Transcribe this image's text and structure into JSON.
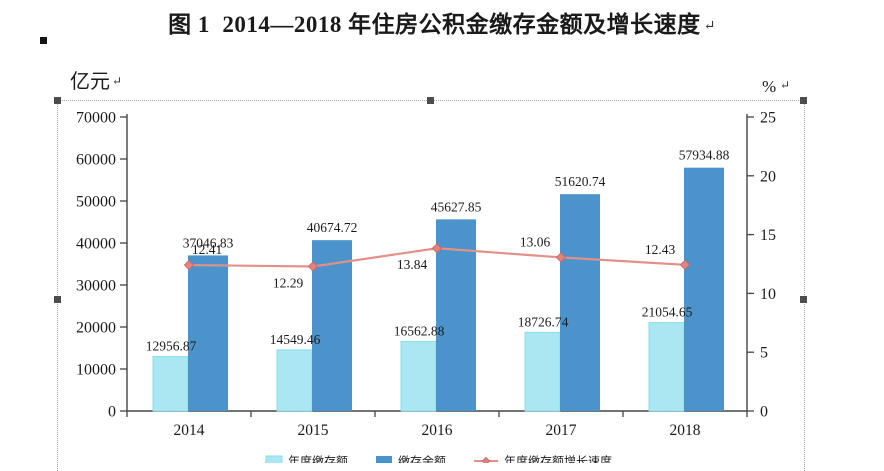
{
  "figure": {
    "title": "图 1  2014—2018 年住房公积金缴存金额及增长速度",
    "paragraph_mark": "↵"
  },
  "chart_data": {
    "type": "combo-bar-line",
    "title": "图 1  2014—2018 年住房公积金缴存金额及增长速度",
    "categories": [
      "2014",
      "2015",
      "2016",
      "2017",
      "2018"
    ],
    "series": [
      {
        "name": "年度缴存额",
        "type": "bar",
        "axis": "left",
        "color": "#a9e8f2",
        "border_color": "#8fdbe9",
        "values": [
          12956.87,
          14549.46,
          16562.88,
          18726.74,
          21054.65
        ],
        "labels": [
          "12956.87",
          "14549.46",
          "16562.88",
          "18726.74",
          "21054.65"
        ]
      },
      {
        "name": "缴存余额",
        "type": "bar",
        "axis": "left",
        "color": "#4b93cb",
        "border_color": "#4b93cb",
        "values": [
          37046.83,
          40674.72,
          45627.85,
          51620.74,
          57934.88
        ],
        "labels": [
          "37046.83",
          "40674.72",
          "45627.85",
          "51620.74",
          "57934.88"
        ]
      },
      {
        "name": "年度缴存额增长速度",
        "type": "line",
        "axis": "right",
        "color": "#e39089",
        "marker_color": "#e2837d",
        "marker_border": "#c96b6f",
        "values": [
          12.41,
          12.29,
          13.84,
          13.06,
          12.43
        ],
        "labels": [
          "12.41",
          "12.29",
          "13.84",
          "13.06",
          "12.43"
        ],
        "label_placement": [
          "above",
          "below",
          "below",
          "above",
          "above"
        ],
        "label_dx": [
          18,
          -25,
          -25,
          -26,
          -25
        ]
      }
    ],
    "left_axis": {
      "title": "亿元",
      "min": 0,
      "max": 70000,
      "step": 10000,
      "tick_labels": [
        "0",
        "10000",
        "20000",
        "30000",
        "40000",
        "50000",
        "60000",
        "70000"
      ]
    },
    "right_axis": {
      "title": "%",
      "min": 0,
      "max": 25,
      "step": 5,
      "tick_labels": [
        "0",
        "5",
        "10",
        "15",
        "20",
        "25"
      ]
    },
    "grid": false,
    "legend_position": "bottom",
    "legend": [
      "年度缴存额",
      "缴存余额",
      "年度缴存额增长速度"
    ],
    "axis_color": "#454545",
    "text_color": "#1b1b1b"
  },
  "selection": {
    "handle_color": "#4d4d4d"
  }
}
